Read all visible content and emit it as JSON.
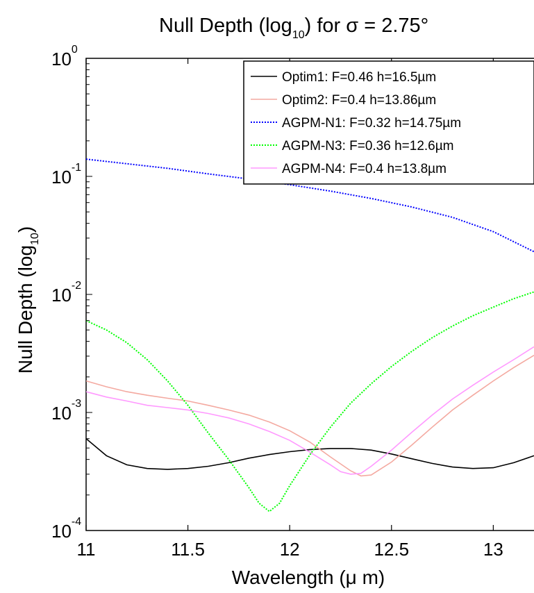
{
  "chart_data": {
    "type": "line",
    "title_main": "Null Depth (log",
    "title_sub": "10",
    "title_rest": ") for σ = 2.75°",
    "xlabel": "Wavelength (μ m)",
    "ylabel_main": "Null Depth  (log",
    "ylabel_sub": "10",
    "ylabel_rest": ")",
    "xlim": [
      11,
      13.2
    ],
    "ylim_exp": [
      -4,
      0
    ],
    "y_scale": "log",
    "x_ticks": [
      {
        "value": 11,
        "label": "11"
      },
      {
        "value": 11.5,
        "label": "11.5"
      },
      {
        "value": 12,
        "label": "12"
      },
      {
        "value": 12.5,
        "label": "12.5"
      },
      {
        "value": 13,
        "label": "13"
      }
    ],
    "y_ticks": [
      {
        "exp": -4,
        "base": "10",
        "sup": "-4"
      },
      {
        "exp": -3,
        "base": "10",
        "sup": "-3"
      },
      {
        "exp": -2,
        "base": "10",
        "sup": "-2"
      },
      {
        "exp": -1,
        "base": "10",
        "sup": "-1"
      },
      {
        "exp": 0,
        "base": "10",
        "sup": "0"
      }
    ],
    "legend_position": "top-right",
    "series": [
      {
        "name": "Optim1: F=0.46 h=16.5µm",
        "color": "#000000",
        "dash": "solid",
        "points": [
          [
            11.0,
            0.0006
          ],
          [
            11.1,
            0.00043
          ],
          [
            11.2,
            0.00036
          ],
          [
            11.3,
            0.000335
          ],
          [
            11.4,
            0.00033
          ],
          [
            11.5,
            0.000335
          ],
          [
            11.6,
            0.00035
          ],
          [
            11.7,
            0.000375
          ],
          [
            11.8,
            0.00041
          ],
          [
            11.9,
            0.00044
          ],
          [
            12.0,
            0.000465
          ],
          [
            12.1,
            0.000485
          ],
          [
            12.2,
            0.000495
          ],
          [
            12.3,
            0.000495
          ],
          [
            12.4,
            0.00048
          ],
          [
            12.5,
            0.000445
          ],
          [
            12.6,
            0.000405
          ],
          [
            12.7,
            0.00037
          ],
          [
            12.8,
            0.000345
          ],
          [
            12.9,
            0.000335
          ],
          [
            13.0,
            0.00034
          ],
          [
            13.1,
            0.000375
          ],
          [
            13.2,
            0.00043
          ]
        ]
      },
      {
        "name": "Optim2: F=0.4 h=13.86µm",
        "color": "#f4a9a0",
        "dash": "solid",
        "points": [
          [
            11.0,
            0.00185
          ],
          [
            11.1,
            0.00165
          ],
          [
            11.2,
            0.0015
          ],
          [
            11.3,
            0.0014
          ],
          [
            11.4,
            0.00132
          ],
          [
            11.5,
            0.00125
          ],
          [
            11.6,
            0.00115
          ],
          [
            11.7,
            0.00105
          ],
          [
            11.8,
            0.00095
          ],
          [
            11.9,
            0.00083
          ],
          [
            12.0,
            0.0007
          ],
          [
            12.1,
            0.00056
          ],
          [
            12.2,
            0.00042
          ],
          [
            12.3,
            0.00032
          ],
          [
            12.35,
            0.00029
          ],
          [
            12.4,
            0.000295
          ],
          [
            12.5,
            0.00038
          ],
          [
            12.6,
            0.00053
          ],
          [
            12.7,
            0.00075
          ],
          [
            12.8,
            0.00105
          ],
          [
            12.9,
            0.0014
          ],
          [
            13.0,
            0.00185
          ],
          [
            13.1,
            0.0024
          ],
          [
            13.2,
            0.00305
          ]
        ]
      },
      {
        "name": "AGPM-N1: F=0.32 h=14.75µm",
        "color": "#0000ff",
        "dash": "dotted",
        "points": [
          [
            11.0,
            0.14
          ],
          [
            11.2,
            0.128
          ],
          [
            11.4,
            0.117
          ],
          [
            11.6,
            0.105
          ],
          [
            11.8,
            0.095
          ],
          [
            12.0,
            0.085
          ],
          [
            12.2,
            0.075
          ],
          [
            12.4,
            0.065
          ],
          [
            12.6,
            0.055
          ],
          [
            12.8,
            0.045
          ],
          [
            13.0,
            0.034
          ],
          [
            13.2,
            0.023
          ]
        ]
      },
      {
        "name": "AGPM-N3: F=0.36 h=12.6µm",
        "color": "#00ff00",
        "dash": "dotted",
        "points": [
          [
            11.0,
            0.006
          ],
          [
            11.1,
            0.005
          ],
          [
            11.2,
            0.0039
          ],
          [
            11.3,
            0.0028
          ],
          [
            11.4,
            0.00185
          ],
          [
            11.5,
            0.00115
          ],
          [
            11.6,
            0.00067
          ],
          [
            11.7,
            0.0004
          ],
          [
            11.8,
            0.00023
          ],
          [
            11.85,
            0.00017
          ],
          [
            11.9,
            0.000145
          ],
          [
            11.95,
            0.00017
          ],
          [
            12.0,
            0.00024
          ],
          [
            12.1,
            0.00044
          ],
          [
            12.2,
            0.00075
          ],
          [
            12.3,
            0.0012
          ],
          [
            12.4,
            0.00175
          ],
          [
            12.5,
            0.00245
          ],
          [
            12.6,
            0.0033
          ],
          [
            12.7,
            0.0043
          ],
          [
            12.8,
            0.0054
          ],
          [
            12.9,
            0.0066
          ],
          [
            13.0,
            0.0078
          ],
          [
            13.1,
            0.0092
          ],
          [
            13.2,
            0.0105
          ]
        ]
      },
      {
        "name": "AGPM-N4: F=0.4 h=13.8µm",
        "color": "#ff99ff",
        "dash": "solid",
        "points": [
          [
            11.0,
            0.0015
          ],
          [
            11.1,
            0.00135
          ],
          [
            11.2,
            0.00125
          ],
          [
            11.3,
            0.00115
          ],
          [
            11.4,
            0.0011
          ],
          [
            11.5,
            0.00105
          ],
          [
            11.6,
            0.00098
          ],
          [
            11.7,
            0.0009
          ],
          [
            11.8,
            0.0008
          ],
          [
            11.9,
            0.00069
          ],
          [
            12.0,
            0.00058
          ],
          [
            12.1,
            0.00046
          ],
          [
            12.2,
            0.00036
          ],
          [
            12.25,
            0.000315
          ],
          [
            12.3,
            0.0003
          ],
          [
            12.35,
            0.000305
          ],
          [
            12.4,
            0.00035
          ],
          [
            12.5,
            0.00048
          ],
          [
            12.6,
            0.00068
          ],
          [
            12.7,
            0.00095
          ],
          [
            12.8,
            0.0013
          ],
          [
            12.9,
            0.0017
          ],
          [
            13.0,
            0.0022
          ],
          [
            13.1,
            0.0028
          ],
          [
            13.2,
            0.0036
          ]
        ]
      }
    ]
  }
}
